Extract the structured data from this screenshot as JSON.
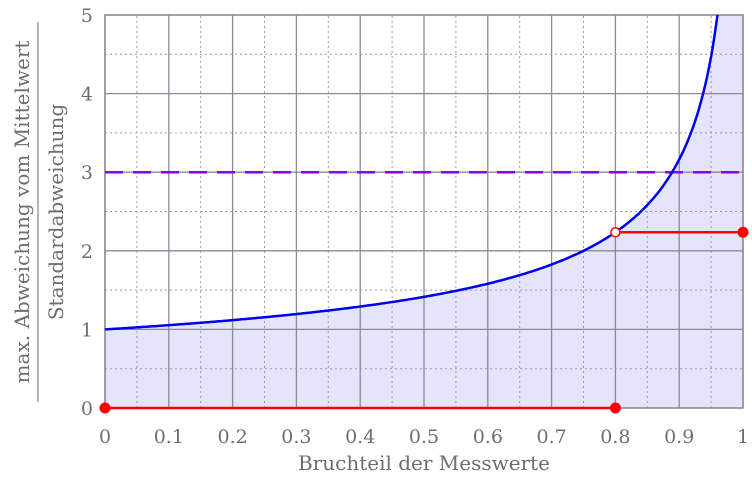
{
  "chart_data": {
    "type": "line",
    "xlabel": "Bruchteil der Messwerte",
    "ylabel_numerator": "max. Abweichung vom Mittelwert",
    "ylabel_denominator": "Standardabweichung",
    "xlim": [
      0,
      1
    ],
    "ylim": [
      0,
      5
    ],
    "xticks": [
      "0",
      "0.1",
      "0.2",
      "0.3",
      "0.4",
      "0.5",
      "0.6",
      "0.7",
      "0.8",
      "0.9",
      "1"
    ],
    "yticks": [
      "0",
      "1",
      "2",
      "3",
      "4",
      "5"
    ],
    "grid": {
      "major": true,
      "minor": true
    },
    "series": [
      {
        "function": "1/sqrt(1-x)",
        "color": "#0000ee",
        "fill_below": "#e4e4fa",
        "x_range": [
          0,
          0.96
        ]
      },
      {
        "type": "hline",
        "y": 3,
        "style": "dashed",
        "color": "#8a00ff"
      },
      {
        "type": "step",
        "color": "#ff0000",
        "segments": [
          {
            "x": [
              0,
              0.8
            ],
            "y": 0,
            "endpoints": [
              "filled",
              "filled"
            ]
          },
          {
            "x": [
              0.8,
              1
            ],
            "y": 2.236,
            "endpoints": [
              "open",
              "filled"
            ]
          }
        ]
      }
    ]
  }
}
